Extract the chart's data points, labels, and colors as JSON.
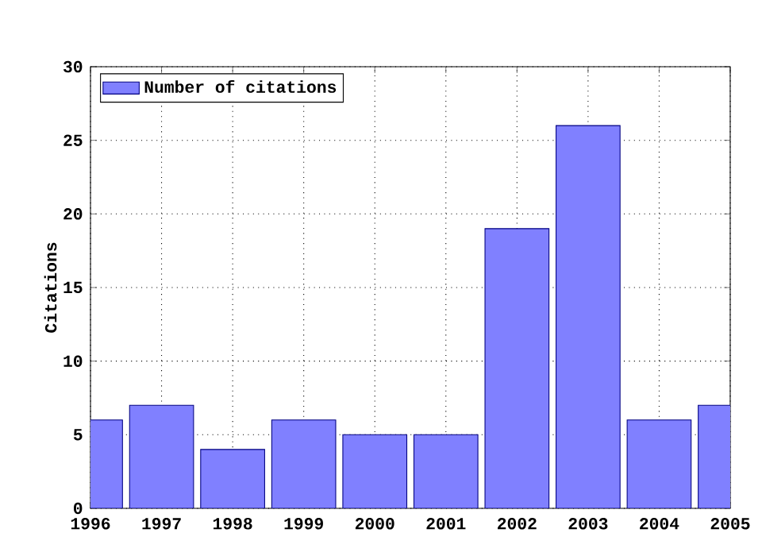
{
  "chart_data": {
    "type": "bar",
    "ylabel": "Citations",
    "x": [
      1996,
      1997,
      1998,
      1999,
      2000,
      2001,
      2002,
      2003,
      2004,
      2005
    ],
    "series": [
      {
        "name": "Number of citations",
        "color": "#8080ff",
        "values": [
          6,
          7,
          4,
          6,
          5,
          5,
          19,
          26,
          6,
          7
        ]
      }
    ],
    "xlim": [
      1996,
      2005
    ],
    "xticks": [
      1996,
      1997,
      1998,
      1999,
      2000,
      2001,
      2002,
      2003,
      2004,
      2005
    ],
    "ylim": [
      0,
      30
    ],
    "yticks": [
      0,
      5,
      10,
      15,
      20,
      25,
      30
    ],
    "grid": true,
    "legend": "top left"
  }
}
